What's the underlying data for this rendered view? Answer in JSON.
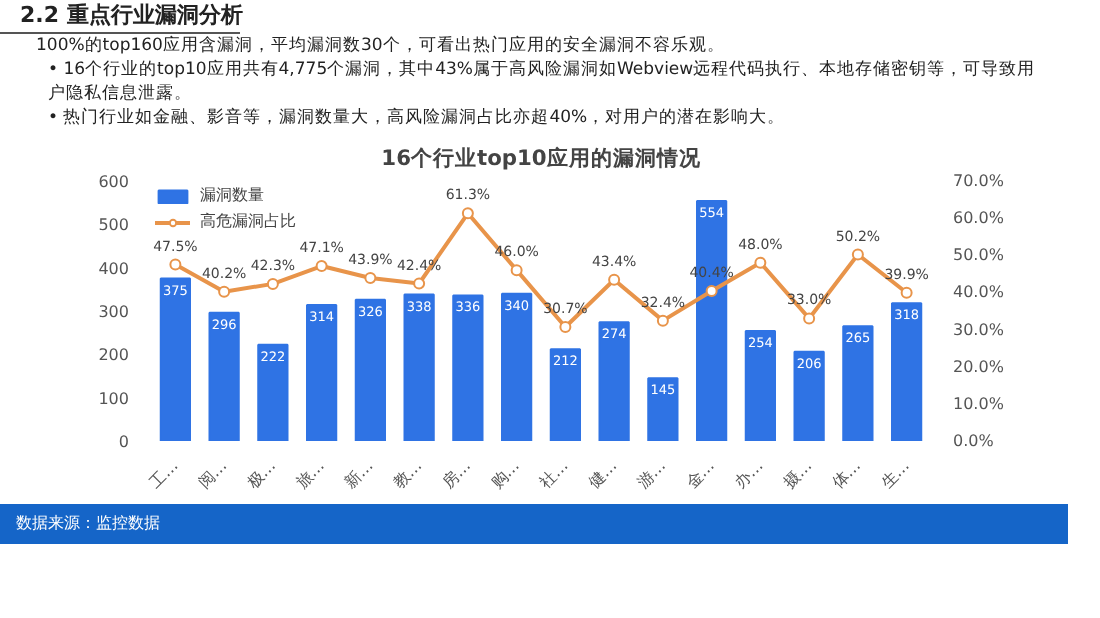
{
  "chart_data": {
    "type": "bar",
    "title": "16个行业top10应用的漏洞情况",
    "categories": [
      "工…",
      "阅…",
      "极…",
      "旅…",
      "新…",
      "教…",
      "房…",
      "购…",
      "社…",
      "健…",
      "游…",
      "金…",
      "办…",
      "摄…",
      "体…",
      "生…"
    ],
    "series": [
      {
        "name": "漏洞数量",
        "color": "#2f73e4",
        "values": [
          375,
          296,
          222,
          314,
          326,
          338,
          336,
          340,
          212,
          274,
          145,
          554,
          254,
          206,
          265,
          318
        ]
      },
      {
        "name": "高危漏洞占比",
        "type": "line",
        "axis": "y2",
        "color": "#e8944a",
        "marker": "circle",
        "values": [
          47.5,
          40.2,
          42.3,
          47.1,
          43.9,
          42.4,
          61.3,
          46.0,
          30.7,
          43.4,
          32.4,
          40.4,
          48.0,
          33.0,
          50.2,
          39.9
        ],
        "value_labels": [
          "47.5%",
          "40.2%",
          "42.3%",
          "47.1%",
          "43.9%",
          "42.4%",
          "61.3%",
          "46.0%",
          "30.7%",
          "43.4%",
          "32.4%",
          "40.4%",
          "48.0%",
          "33.0%",
          "50.2%",
          "39.9%"
        ]
      }
    ],
    "data_labels": true,
    "ylim": [
      0,
      600
    ],
    "yticks": [
      0,
      100,
      200,
      300,
      400,
      500,
      600
    ],
    "y2lim": [
      0,
      70
    ],
    "y2ticks": [
      {
        "value": 0,
        "label": "0.0%"
      },
      {
        "value": 10,
        "label": "10.0%"
      },
      {
        "value": 20,
        "label": "20.0%"
      },
      {
        "value": 30,
        "label": "30.0%"
      },
      {
        "value": 40,
        "label": "40.0%"
      },
      {
        "value": 50,
        "label": "50.0%"
      },
      {
        "value": 60,
        "label": "60.0%"
      },
      {
        "value": 70,
        "label": "70.0%"
      }
    ],
    "grid": false,
    "legend": "top",
    "annotations": [
      "2.2 重点行业漏洞分析",
      "100%的top160应用含漏洞，平均漏洞数30个，可看出热门应用的安全漏洞不容乐观。",
      "• 16个行业的top10应用共有4,775个漏洞，其中43%属于高风险漏洞如Webview远程代码执行、本地存储密钥等，可导致用",
      "户隐私信息泄露。",
      "• 热门行业如金融、影音等，漏洞数量大，高风险漏洞占比亦超40%，对用户的潜在影响大。",
      "数据来源：监控数据"
    ]
  }
}
